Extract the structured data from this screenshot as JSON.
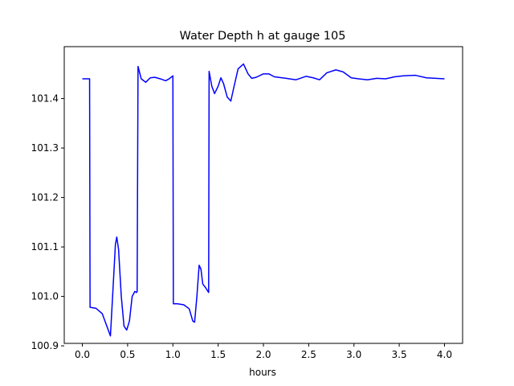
{
  "chart_data": {
    "type": "line",
    "title": "Water Depth h at gauge 105",
    "xlabel": "hours",
    "ylabel": "",
    "xlim": [
      -0.2,
      4.2
    ],
    "ylim": [
      100.905,
      101.505
    ],
    "grid": false,
    "xticks": [
      0.0,
      0.5,
      1.0,
      1.5,
      2.0,
      2.5,
      3.0,
      3.5,
      4.0
    ],
    "xtick_labels": [
      "0.0",
      "0.5",
      "1.0",
      "1.5",
      "2.0",
      "2.5",
      "3.0",
      "3.5",
      "4.0"
    ],
    "yticks": [
      100.9,
      101.0,
      101.1,
      101.2,
      101.3,
      101.4
    ],
    "ytick_labels": [
      "100.9",
      "101.0",
      "101.1",
      "101.2",
      "101.3",
      "101.4"
    ],
    "series": [
      {
        "color": "#0000ff",
        "points": [
          [
            0.0,
            101.44
          ],
          [
            0.08,
            101.44
          ],
          [
            0.085,
            100.978
          ],
          [
            0.15,
            100.976
          ],
          [
            0.22,
            100.965
          ],
          [
            0.26,
            100.945
          ],
          [
            0.31,
            100.92
          ],
          [
            0.34,
            101.02
          ],
          [
            0.365,
            101.105
          ],
          [
            0.38,
            101.12
          ],
          [
            0.4,
            101.095
          ],
          [
            0.43,
            101.0
          ],
          [
            0.46,
            100.94
          ],
          [
            0.49,
            100.932
          ],
          [
            0.52,
            100.95
          ],
          [
            0.55,
            101.0
          ],
          [
            0.58,
            101.01
          ],
          [
            0.6,
            101.008
          ],
          [
            0.605,
            101.01
          ],
          [
            0.615,
            101.465
          ],
          [
            0.65,
            101.44
          ],
          [
            0.7,
            101.433
          ],
          [
            0.75,
            101.442
          ],
          [
            0.8,
            101.443
          ],
          [
            0.86,
            101.44
          ],
          [
            0.92,
            101.436
          ],
          [
            0.96,
            101.44
          ],
          [
            1.0,
            101.446
          ],
          [
            1.005,
            100.985
          ],
          [
            1.05,
            100.985
          ],
          [
            1.12,
            100.983
          ],
          [
            1.18,
            100.975
          ],
          [
            1.22,
            100.95
          ],
          [
            1.24,
            100.948
          ],
          [
            1.265,
            101.0
          ],
          [
            1.29,
            101.063
          ],
          [
            1.31,
            101.055
          ],
          [
            1.33,
            101.025
          ],
          [
            1.36,
            101.018
          ],
          [
            1.395,
            101.008
          ],
          [
            1.4,
            101.455
          ],
          [
            1.43,
            101.425
          ],
          [
            1.46,
            101.41
          ],
          [
            1.5,
            101.425
          ],
          [
            1.53,
            101.442
          ],
          [
            1.56,
            101.43
          ],
          [
            1.6,
            101.403
          ],
          [
            1.64,
            101.395
          ],
          [
            1.67,
            101.42
          ],
          [
            1.72,
            101.46
          ],
          [
            1.78,
            101.47
          ],
          [
            1.83,
            101.45
          ],
          [
            1.87,
            101.441
          ],
          [
            1.92,
            101.443
          ],
          [
            2.0,
            101.45
          ],
          [
            2.06,
            101.45
          ],
          [
            2.12,
            101.444
          ],
          [
            2.25,
            101.441
          ],
          [
            2.36,
            101.438
          ],
          [
            2.47,
            101.445
          ],
          [
            2.55,
            101.442
          ],
          [
            2.62,
            101.438
          ],
          [
            2.7,
            101.452
          ],
          [
            2.8,
            101.458
          ],
          [
            2.88,
            101.454
          ],
          [
            2.97,
            101.442
          ],
          [
            3.05,
            101.44
          ],
          [
            3.15,
            101.438
          ],
          [
            3.25,
            101.441
          ],
          [
            3.35,
            101.44
          ],
          [
            3.45,
            101.444
          ],
          [
            3.55,
            101.446
          ],
          [
            3.68,
            101.447
          ],
          [
            3.8,
            101.442
          ],
          [
            3.9,
            101.441
          ],
          [
            4.0,
            101.44
          ]
        ]
      }
    ]
  }
}
